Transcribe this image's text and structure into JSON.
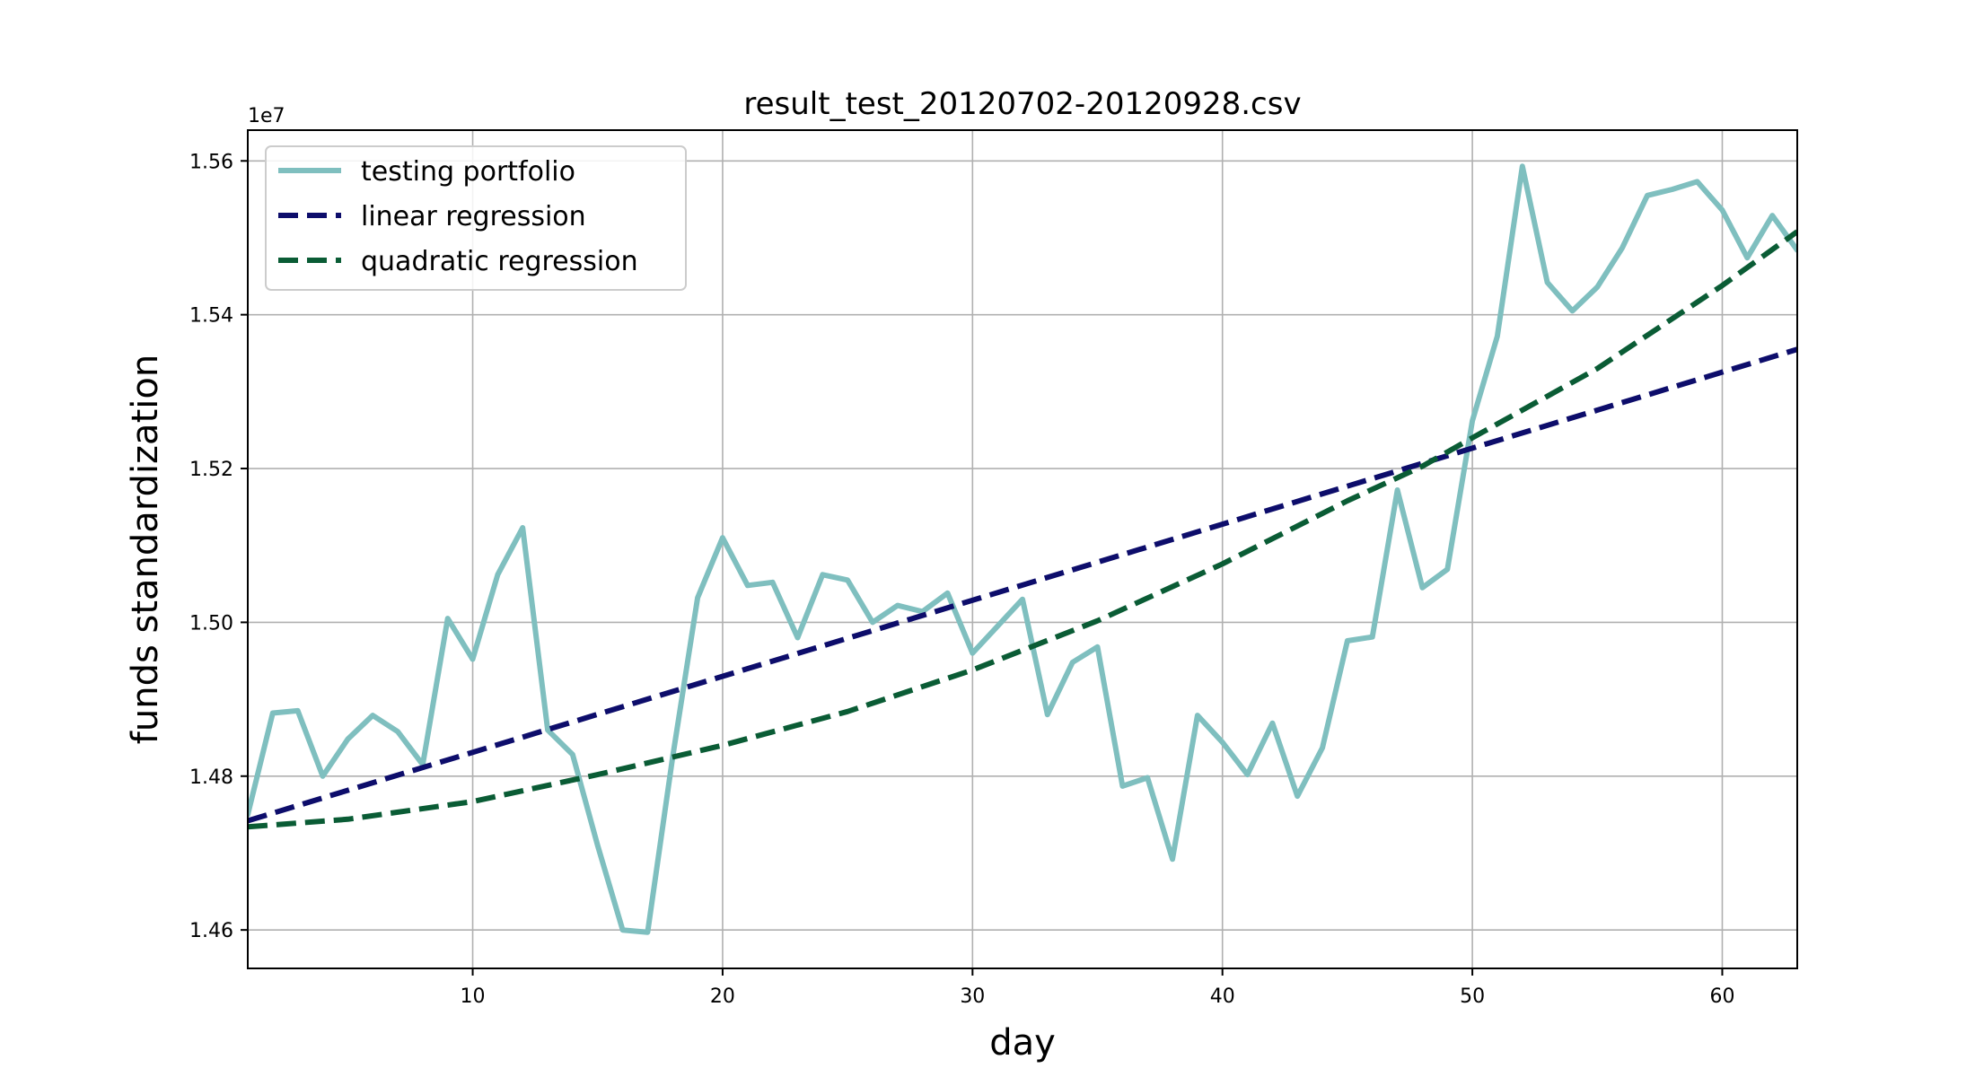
{
  "chart_data": {
    "type": "line",
    "title": "result_test_20120702-20120928.csv",
    "xlabel": "day",
    "ylabel": "funds standardization",
    "y_offset_label": "1e7",
    "xlim": [
      1,
      63
    ],
    "ylim": [
      1.455,
      1.564
    ],
    "x_ticks": [
      10,
      20,
      30,
      40,
      50,
      60
    ],
    "x_tick_labels": [
      "10",
      "20",
      "30",
      "40",
      "50",
      "60"
    ],
    "y_ticks": [
      1.46,
      1.48,
      1.5,
      1.52,
      1.54,
      1.56
    ],
    "y_tick_labels": [
      "1.46",
      "1.48",
      "1.50",
      "1.52",
      "1.54",
      "1.56"
    ],
    "grid": true,
    "legend_position": "top-left",
    "series": [
      {
        "name": "testing portfolio",
        "style": "solid",
        "color": "#7fbfbf",
        "x": [
          1,
          2,
          3,
          4,
          5,
          6,
          7,
          8,
          9,
          10,
          11,
          12,
          13,
          14,
          15,
          16,
          17,
          18,
          19,
          20,
          21,
          22,
          23,
          24,
          25,
          26,
          27,
          28,
          29,
          30,
          31,
          32,
          33,
          34,
          35,
          36,
          37,
          38,
          39,
          40,
          41,
          42,
          43,
          44,
          45,
          46,
          47,
          48,
          49,
          50,
          51,
          52,
          53,
          54,
          55,
          56,
          57,
          58,
          59,
          60,
          61,
          62,
          63
        ],
        "values": [
          1.475,
          1.4882,
          1.4885,
          1.48,
          1.4848,
          1.4879,
          1.4858,
          1.4815,
          1.5005,
          1.4952,
          1.5062,
          1.5123,
          1.486,
          1.4828,
          1.471,
          1.46,
          1.4597,
          1.4825,
          1.5032,
          1.511,
          1.5048,
          1.5052,
          1.498,
          1.5062,
          1.5055,
          1.5,
          1.5022,
          1.5014,
          1.5038,
          1.496,
          1.4995,
          1.503,
          1.488,
          1.4948,
          1.4968,
          1.4787,
          1.4798,
          1.4692,
          1.4879,
          1.4844,
          1.4802,
          1.4869,
          1.4774,
          1.4837,
          1.4976,
          1.4981,
          1.5172,
          1.5045,
          1.5069,
          1.5262,
          1.5372,
          1.5593,
          1.5442,
          1.5405,
          1.5436,
          1.5487,
          1.5555,
          1.5563,
          1.5573,
          1.5536,
          1.5474,
          1.5529,
          1.5484
        ]
      },
      {
        "name": "linear regression",
        "style": "dashed",
        "color": "#0d0d6b",
        "x": [
          1,
          63
        ],
        "values": [
          1.4742,
          1.5355
        ]
      },
      {
        "name": "quadratic regression",
        "style": "dashed",
        "color": "#0a5c35",
        "x": [
          1,
          5,
          10,
          15,
          20,
          25,
          30,
          35,
          40,
          45,
          48,
          50,
          55,
          60,
          63
        ],
        "values": [
          1.4734,
          1.4744,
          1.4767,
          1.4802,
          1.484,
          1.4884,
          1.4938,
          1.5002,
          1.5076,
          1.5158,
          1.5203,
          1.524,
          1.533,
          1.5438,
          1.5508
        ]
      }
    ]
  }
}
